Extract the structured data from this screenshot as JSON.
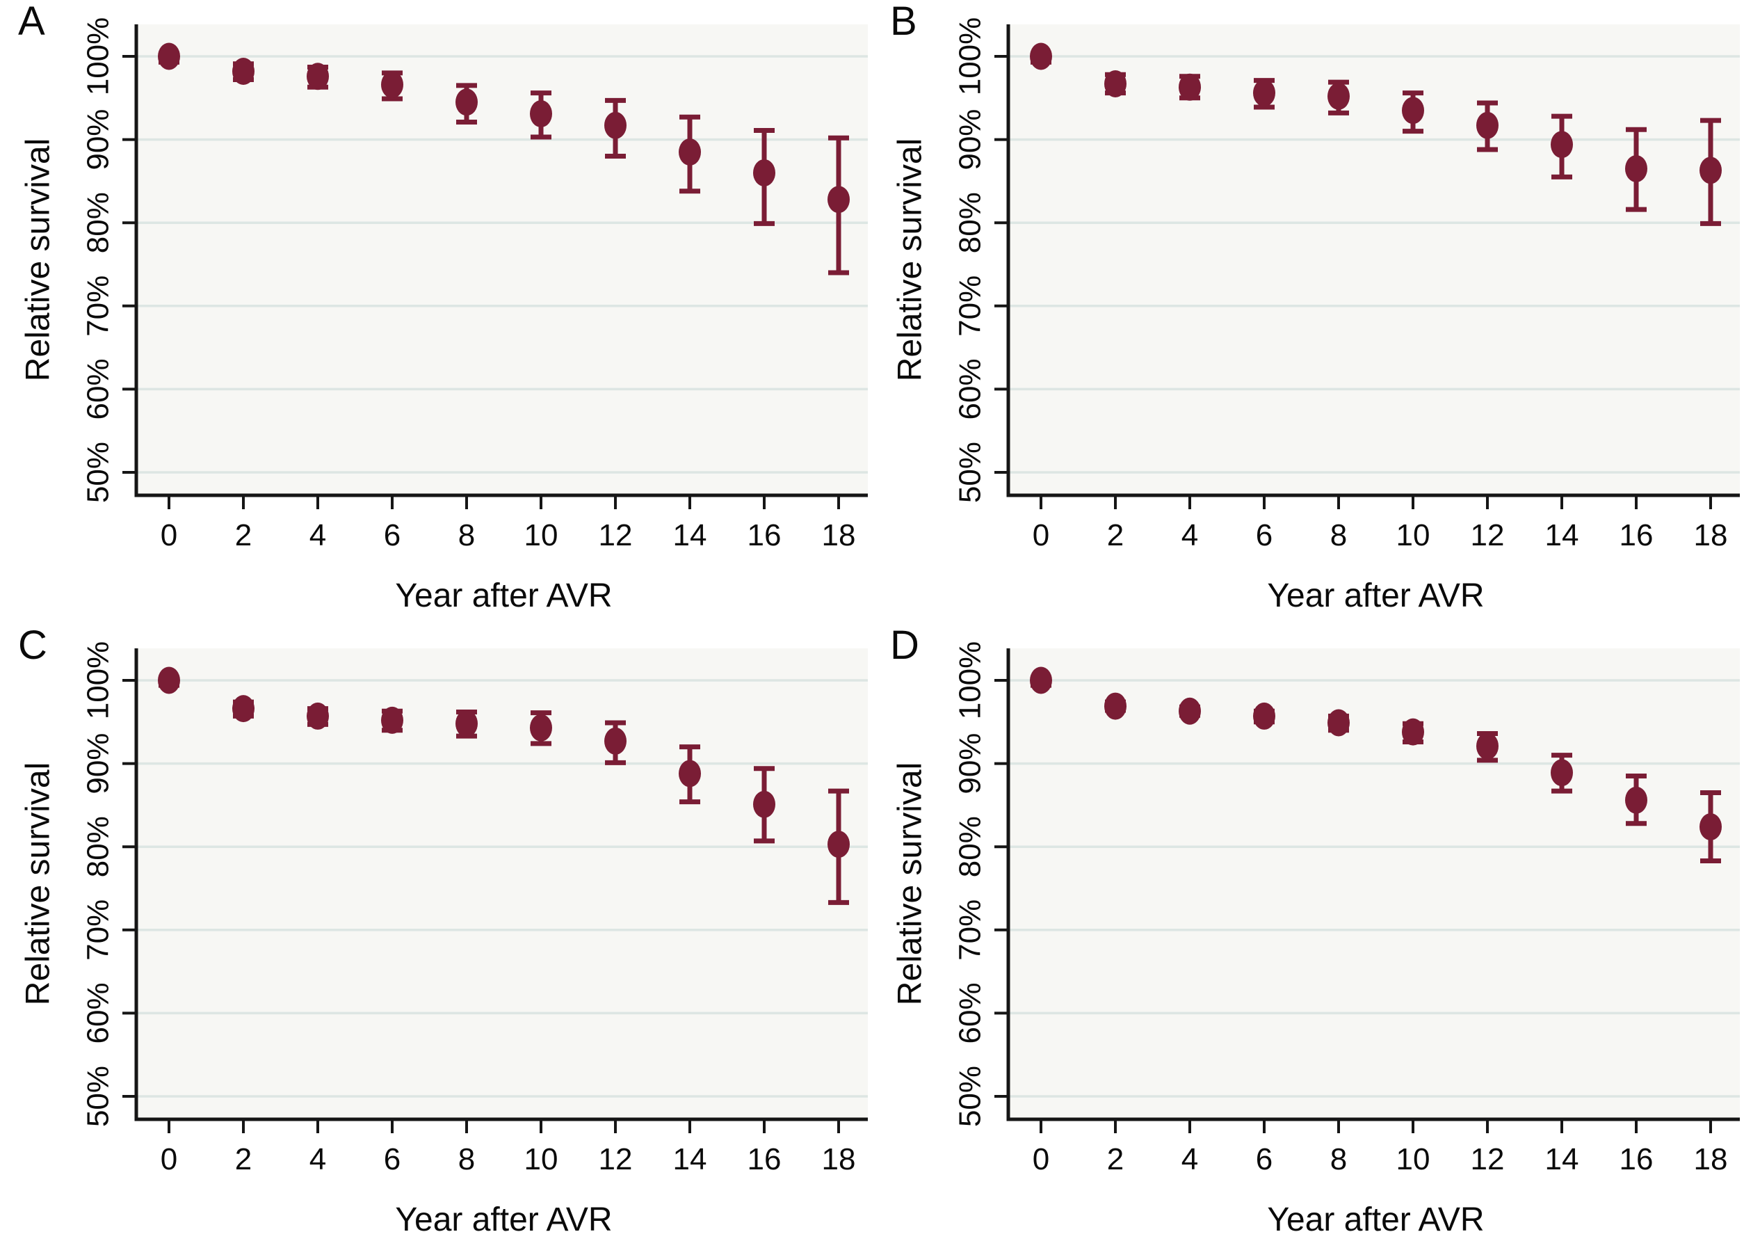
{
  "figure_title": "",
  "colors": {
    "marker": "#7a1d35",
    "error_bar": "#7a1d35",
    "grid": "#dde6e3",
    "axis": "#161616",
    "plot_background": "#f7f7f4",
    "page_background": "#ffffff",
    "text": "#0a0a0a"
  },
  "chart_data": [
    {
      "panel_label": "A",
      "type": "scatter",
      "xlabel": "Year after AVR",
      "ylabel": "Relative survival",
      "x": [
        0,
        2,
        4,
        6,
        8,
        10,
        12,
        14,
        16,
        18
      ],
      "values": [
        100,
        98.2,
        97.6,
        96.6,
        94.5,
        93.1,
        91.7,
        88.5,
        86.0,
        82.8
      ],
      "ci_low": [
        99.3,
        97.2,
        96.3,
        94.9,
        92.1,
        90.3,
        88.0,
        83.8,
        79.9,
        74.0
      ],
      "ci_high": [
        100.0,
        99.1,
        98.7,
        98.0,
        96.5,
        95.6,
        94.7,
        92.7,
        91.1,
        90.2
      ],
      "xticks": [
        0,
        2,
        4,
        6,
        8,
        10,
        12,
        14,
        16,
        18
      ],
      "yticks": [
        50,
        60,
        70,
        80,
        90,
        100
      ],
      "ytick_suffix": "%",
      "ylim": [
        50,
        100
      ],
      "grid": true,
      "legend": null
    },
    {
      "panel_label": "B",
      "type": "scatter",
      "xlabel": "Year after AVR",
      "ylabel": "Relative survival",
      "x": [
        0,
        2,
        4,
        6,
        8,
        10,
        12,
        14,
        16,
        18
      ],
      "values": [
        100,
        96.7,
        96.3,
        95.6,
        95.2,
        93.5,
        91.7,
        89.4,
        86.5,
        86.3
      ],
      "ci_low": [
        99.3,
        95.6,
        95.0,
        93.9,
        93.2,
        91.0,
        88.8,
        85.5,
        81.6,
        79.9
      ],
      "ci_high": [
        100.0,
        97.8,
        97.6,
        97.1,
        96.9,
        95.6,
        94.4,
        92.8,
        91.2,
        92.3
      ],
      "xticks": [
        0,
        2,
        4,
        6,
        8,
        10,
        12,
        14,
        16,
        18
      ],
      "yticks": [
        50,
        60,
        70,
        80,
        90,
        100
      ],
      "ytick_suffix": "%",
      "ylim": [
        50,
        100
      ],
      "grid": true,
      "legend": null
    },
    {
      "panel_label": "C",
      "type": "scatter",
      "xlabel": "Year after AVR",
      "ylabel": "Relative survival",
      "x": [
        0,
        2,
        4,
        6,
        8,
        10,
        12,
        14,
        16,
        18
      ],
      "values": [
        100,
        96.6,
        95.7,
        95.2,
        94.8,
        94.3,
        92.7,
        88.8,
        85.1,
        80.3
      ],
      "ci_low": [
        99.4,
        95.7,
        94.7,
        94.0,
        93.3,
        92.4,
        90.1,
        85.4,
        80.7,
        73.3
      ],
      "ci_high": [
        100.0,
        97.4,
        96.6,
        96.3,
        96.2,
        96.1,
        94.9,
        92.0,
        89.4,
        86.7
      ],
      "xticks": [
        0,
        2,
        4,
        6,
        8,
        10,
        12,
        14,
        16,
        18
      ],
      "yticks": [
        50,
        60,
        70,
        80,
        90,
        100
      ],
      "ytick_suffix": "%",
      "ylim": [
        50,
        100
      ],
      "grid": true,
      "legend": null
    },
    {
      "panel_label": "D",
      "type": "scatter",
      "xlabel": "Year after AVR",
      "ylabel": "Relative survival",
      "x": [
        0,
        2,
        4,
        6,
        8,
        10,
        12,
        14,
        16,
        18
      ],
      "values": [
        100,
        96.9,
        96.3,
        95.7,
        94.9,
        93.8,
        92.1,
        88.9,
        85.6,
        82.4
      ],
      "ci_low": [
        99.4,
        96.4,
        95.8,
        95.0,
        94.0,
        92.6,
        90.4,
        86.7,
        82.8,
        78.3
      ],
      "ci_high": [
        100.0,
        97.4,
        96.8,
        96.3,
        95.7,
        94.8,
        93.6,
        91.0,
        88.5,
        86.5
      ],
      "xticks": [
        0,
        2,
        4,
        6,
        8,
        10,
        12,
        14,
        16,
        18
      ],
      "yticks": [
        50,
        60,
        70,
        80,
        90,
        100
      ],
      "ytick_suffix": "%",
      "ylim": [
        50,
        100
      ],
      "grid": true,
      "legend": null
    }
  ]
}
